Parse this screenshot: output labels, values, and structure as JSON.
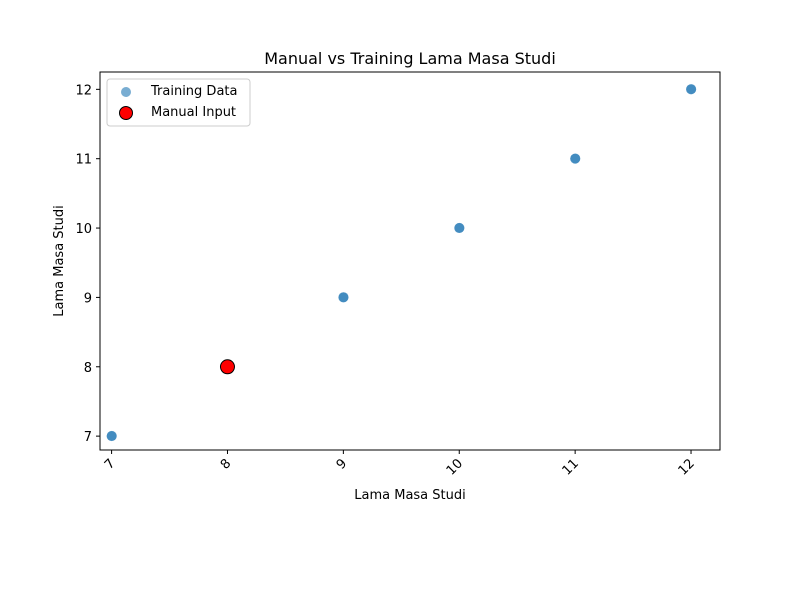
{
  "chart_data": {
    "type": "scatter",
    "title": "Manual vs Training Lama Masa Studi",
    "xlabel": "Lama Masa Studi",
    "ylabel": "Lama Masa Studi",
    "xlim": [
      6.9,
      12.25
    ],
    "ylim": [
      6.8,
      12.25
    ],
    "xticks": [
      "7",
      "8",
      "9",
      "10",
      "11",
      "12"
    ],
    "yticks": [
      "7",
      "8",
      "9",
      "10",
      "11",
      "12"
    ],
    "grid": false,
    "legend_position": "top-left",
    "series": [
      {
        "name": "Training Data",
        "color": "#1f77b4",
        "points": [
          {
            "x": 7,
            "y": 7
          },
          {
            "x": 9,
            "y": 9
          },
          {
            "x": 10,
            "y": 10
          },
          {
            "x": 11,
            "y": 11
          },
          {
            "x": 12,
            "y": 12
          }
        ]
      },
      {
        "name": "Manual Input",
        "color": "#ff0000",
        "edge_color": "#000000",
        "points": [
          {
            "x": 8,
            "y": 8
          }
        ]
      }
    ]
  }
}
